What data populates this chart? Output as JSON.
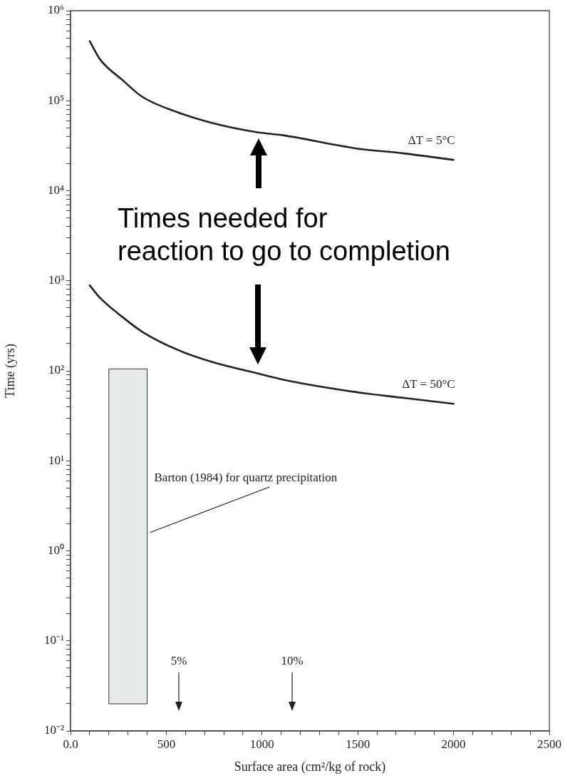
{
  "chart_data": {
    "type": "line",
    "xlabel": "Surface area (cm²/kg of rock)",
    "ylabel": "Time (yrs)",
    "log": "y",
    "xlim": [
      0,
      2500
    ],
    "xticks": [
      {
        "value": 0,
        "label": "0.0"
      },
      {
        "value": 100,
        "label": null
      },
      {
        "value": 200,
        "label": null
      },
      {
        "value": 300,
        "label": null
      },
      {
        "value": 400,
        "label": null
      },
      500,
      {
        "value": 600,
        "label": null
      },
      {
        "value": 700,
        "label": null
      },
      {
        "value": 800,
        "label": null
      },
      {
        "value": 900,
        "label": null
      },
      1000,
      {
        "value": 1100,
        "label": null
      },
      {
        "value": 1200,
        "label": null
      },
      {
        "value": 1300,
        "label": null
      },
      {
        "value": 1400,
        "label": null
      },
      1500,
      {
        "value": 1600,
        "label": null
      },
      {
        "value": 1700,
        "label": null
      },
      {
        "value": 1800,
        "label": null
      },
      {
        "value": 1900,
        "label": null
      },
      2000,
      {
        "value": 2100,
        "label": null
      },
      {
        "value": 2200,
        "label": null
      },
      {
        "value": 2300,
        "label": null
      },
      {
        "value": 2400,
        "label": null
      },
      2500
    ],
    "ylim": [
      0.01,
      1000000
    ],
    "yticks": [
      {
        "value": 0.01,
        "label": "10⁻²"
      },
      {
        "value": 0.02,
        "label": null
      },
      {
        "value": 0.03,
        "label": null
      },
      {
        "value": 0.04,
        "label": null
      },
      {
        "value": 0.05,
        "label": null
      },
      {
        "value": 0.06,
        "label": null
      },
      {
        "value": 0.07,
        "label": null
      },
      {
        "value": 0.08,
        "label": null
      },
      {
        "value": 0.09,
        "label": null
      },
      {
        "value": 0.1,
        "label": "10⁻¹"
      },
      {
        "value": 0.2,
        "label": null
      },
      {
        "value": 0.3,
        "label": null
      },
      {
        "value": 0.4,
        "label": null
      },
      {
        "value": 0.5,
        "label": null
      },
      {
        "value": 0.6,
        "label": null
      },
      {
        "value": 0.7,
        "label": null
      },
      {
        "value": 0.8,
        "label": null
      },
      {
        "value": 0.9,
        "label": null
      },
      {
        "value": 1,
        "label": "10⁰"
      },
      {
        "value": 2,
        "label": null
      },
      {
        "value": 3,
        "label": null
      },
      {
        "value": 4,
        "label": null
      },
      {
        "value": 5,
        "label": null
      },
      {
        "value": 6,
        "label": null
      },
      {
        "value": 7,
        "label": null
      },
      {
        "value": 8,
        "label": null
      },
      {
        "value": 9,
        "label": null
      },
      {
        "value": 10,
        "label": "10¹"
      },
      {
        "value": 20,
        "label": null
      },
      {
        "value": 30,
        "label": null
      },
      {
        "value": 40,
        "label": null
      },
      {
        "value": 50,
        "label": null
      },
      {
        "value": 60,
        "label": null
      },
      {
        "value": 70,
        "label": null
      },
      {
        "value": 80,
        "label": null
      },
      {
        "value": 90,
        "label": null
      },
      {
        "value": 100,
        "label": "10²"
      },
      {
        "value": 200,
        "label": null
      },
      {
        "value": 300,
        "label": null
      },
      {
        "value": 400,
        "label": null
      },
      {
        "value": 500,
        "label": null
      },
      {
        "value": 600,
        "label": null
      },
      {
        "value": 700,
        "label": null
      },
      {
        "value": 800,
        "label": null
      },
      {
        "value": 900,
        "label": null
      },
      {
        "value": 1000,
        "label": "10³"
      },
      {
        "value": 2000,
        "label": null
      },
      {
        "value": 3000,
        "label": null
      },
      {
        "value": 4000,
        "label": null
      },
      {
        "value": 5000,
        "label": null
      },
      {
        "value": 6000,
        "label": null
      },
      {
        "value": 7000,
        "label": null
      },
      {
        "value": 8000,
        "label": null
      },
      {
        "value": 9000,
        "label": null
      },
      {
        "value": 10000,
        "label": "10⁴"
      },
      {
        "value": 20000,
        "label": null
      },
      {
        "value": 30000,
        "label": null
      },
      {
        "value": 40000,
        "label": null
      },
      {
        "value": 50000,
        "label": null
      },
      {
        "value": 60000,
        "label": null
      },
      {
        "value": 70000,
        "label": null
      },
      {
        "value": 80000,
        "label": null
      },
      {
        "value": 90000,
        "label": null
      },
      {
        "value": 100000,
        "label": "10⁵"
      },
      {
        "value": 200000,
        "label": null
      },
      {
        "value": 300000,
        "label": null
      },
      {
        "value": 400000,
        "label": null
      },
      {
        "value": 500000,
        "label": null
      },
      {
        "value": 600000,
        "label": null
      },
      {
        "value": 700000,
        "label": null
      },
      {
        "value": 800000,
        "label": null
      },
      {
        "value": 900000,
        "label": null
      },
      {
        "value": 1000000,
        "label": "10⁶"
      }
    ],
    "series": [
      {
        "name": "ΔT = 5°C",
        "color": "#222222",
        "x": [
          100,
          153,
          275,
          376,
          562,
          748,
          964,
          1120,
          1492,
          1741,
          2000
        ],
        "values": [
          460000,
          290000,
          167000,
          110000,
          74000,
          56000,
          45000,
          41000,
          29500,
          26000,
          22000
        ]
      },
      {
        "name": "ΔT = 50°C",
        "color": "#222222",
        "x": [
          100,
          153,
          275,
          376,
          562,
          748,
          964,
          1120,
          1492,
          1741,
          2000
        ],
        "values": [
          890,
          650,
          390,
          270,
          170,
          124,
          95,
          79,
          58,
          50,
          43
        ]
      },
      {
        "type": "area",
        "color": "#e8e9e9",
        "x": [
          200,
          200,
          400,
          400,
          200
        ],
        "values": [
          0.02,
          105,
          105,
          0.02,
          0.02
        ]
      }
    ],
    "annotations": [
      "5%",
      "10%",
      {
        "text": "Barton (1984) for quartz precipitation",
        "x": 400,
        "y": 1.6
      },
      "Times needed for\nreaction to go to completion"
    ]
  }
}
